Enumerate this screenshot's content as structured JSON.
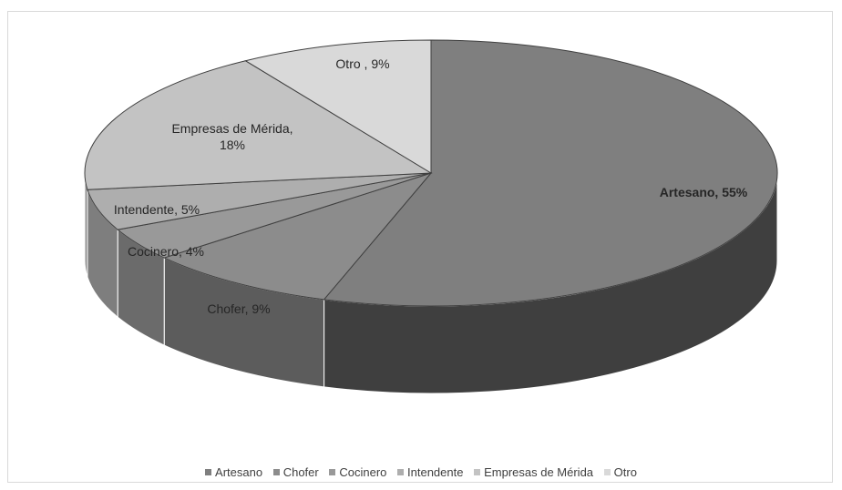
{
  "chart_data": {
    "type": "pie",
    "title": "",
    "slices": [
      {
        "name": "Artesano",
        "value": 55,
        "label": "Artesano, 55%",
        "color": "#7f7f7f",
        "side_color": "#3f3f3f"
      },
      {
        "name": "Chofer",
        "value": 9,
        "label": "Chofer, 9%",
        "color": "#8c8c8c",
        "side_color": "#5c5c5c"
      },
      {
        "name": "Cocinero",
        "value": 4,
        "label": "Cocinero, 4%",
        "color": "#999999",
        "side_color": "#6b6b6b"
      },
      {
        "name": "Intendente",
        "value": 5,
        "label": "Intendente, 5%",
        "color": "#aeaeae",
        "side_color": "#7e7e7e"
      },
      {
        "name": "Empresas de Mérida",
        "value": 18,
        "label_lines": [
          "Empresas de Mérida,",
          "18%"
        ],
        "color": "#c3c3c3",
        "side_color": "#909090"
      },
      {
        "name": "Otro",
        "value": 9,
        "label": "Otro , 9%",
        "color": "#d9d9d9",
        "side_color": "#a6a6a6"
      }
    ],
    "legend": {
      "placement": "bottom",
      "items": [
        "Artesano",
        "Chofer",
        "Cocinero",
        "Intendente",
        "Empresas de Mérida",
        "Otro"
      ]
    },
    "style": "3d-pie"
  }
}
